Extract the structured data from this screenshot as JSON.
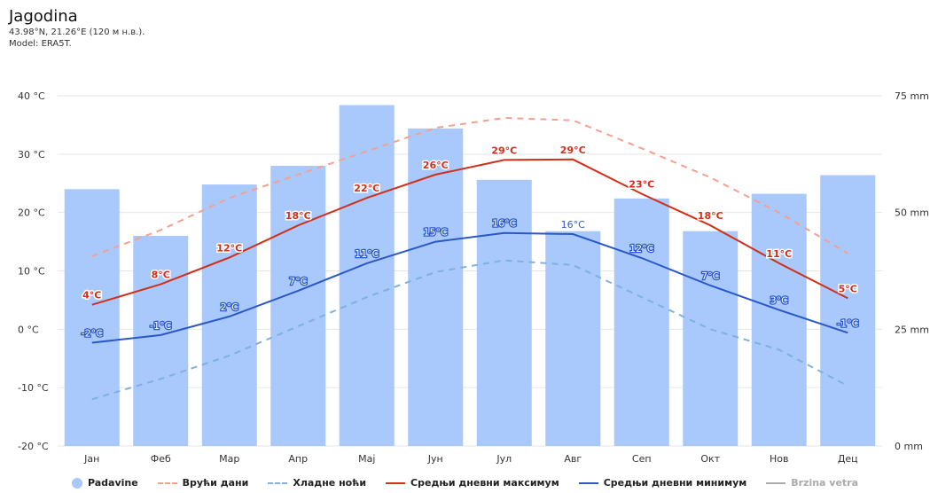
{
  "header": {
    "title": "Jagodina",
    "coords": "43.98°N, 21.26°E (120 м н.в.).",
    "model": "Model: ERA5T."
  },
  "legend": {
    "precip": "Padavine",
    "hot": "Врући дани",
    "cold": "Хладне ноћи",
    "max": "Средњи дневни максимум",
    "min": "Средњи дневни минимум",
    "wind": "Brzina vetra"
  },
  "colors": {
    "bar": "#a9c8fb",
    "hot": "#f4a090",
    "cold": "#7fb0e0",
    "max": "#d0301a",
    "min": "#2a58c8",
    "wind": "#aaaaaa",
    "grid": "#e6e6e6"
  },
  "chart_data": {
    "type": "bar+line",
    "categories": [
      "Јан",
      "Феб",
      "Мар",
      "Апр",
      "Мај",
      "Јун",
      "Јул",
      "Авг",
      "Сеп",
      "Окт",
      "Нов",
      "Дец"
    ],
    "y_left": {
      "ticks": [
        "40 °C",
        "30 °C",
        "20 °C",
        "10 °C",
        "0 °C",
        "-10 °C",
        "-20 °C"
      ],
      "range": [
        -20,
        40
      ]
    },
    "y_right": {
      "ticks": [
        "75 mm",
        "50 mm",
        "25 mm",
        "0 mm"
      ],
      "range": [
        0,
        75
      ]
    },
    "precipitation_mm": [
      55,
      45,
      56,
      60,
      73,
      68,
      57,
      46,
      53,
      46,
      54,
      58
    ],
    "series": [
      {
        "key": "hot",
        "name": "Врући дани",
        "values": [
          12.5,
          17,
          22.5,
          26.5,
          30.5,
          34.5,
          36.2,
          35.8,
          31,
          26,
          20,
          13
        ],
        "dashed": true
      },
      {
        "key": "cold",
        "name": "Хладне ноћи",
        "values": [
          -12,
          -8.5,
          -4.5,
          0.5,
          5.5,
          9.8,
          11.8,
          11,
          5.5,
          0,
          -3.5,
          -9.7
        ],
        "dashed": true
      },
      {
        "key": "max",
        "name": "Средњи дневни максимум",
        "values": [
          4.2,
          7.7,
          12.3,
          17.8,
          22.5,
          26.5,
          29,
          29.1,
          23.2,
          17.8,
          11.3,
          5.3
        ],
        "labels": [
          "4°C",
          "8°C",
          "12°C",
          "18°C",
          "22°C",
          "26°C",
          "29°C",
          "29°C",
          "23°C",
          "18°C",
          "11°C",
          "5°C"
        ]
      },
      {
        "key": "min",
        "name": "Средњи дневни минимум",
        "values": [
          -2.3,
          -1,
          2.2,
          6.6,
          11.3,
          15,
          16.5,
          16.3,
          12.2,
          7.5,
          3.3,
          -0.6
        ],
        "labels": [
          "-2°C",
          "-1°C",
          "2°C",
          "7°C",
          "11°C",
          "15°C",
          "16°C",
          "16°C",
          "12°C",
          "7°C",
          "3°C",
          "-1°C"
        ]
      }
    ]
  }
}
